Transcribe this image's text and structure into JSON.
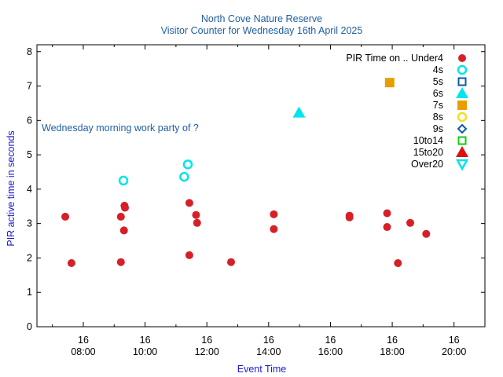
{
  "chart_data": {
    "type": "scatter",
    "title": "North Cove Nature Reserve",
    "subtitle": "Visitor Counter for Wednesday 16th April 2025",
    "xlabel": "Event Time",
    "ylabel": "PIR active time in seconds",
    "annotation": "Wednesday morning work party of ?",
    "legend_title": "PIR Time on .. Under4",
    "legend_placement": "top-right",
    "xlim": [
      "06:30",
      "21:00"
    ],
    "ylim": [
      0,
      8.2
    ],
    "y_ticks": [
      "0",
      "1",
      "2",
      "3",
      "4",
      "5",
      "6",
      "7",
      "8"
    ],
    "x_ticks": [
      {
        "day": "16",
        "time": "08:00"
      },
      {
        "day": "16",
        "time": "10:00"
      },
      {
        "day": "16",
        "time": "12:00"
      },
      {
        "day": "16",
        "time": "14:00"
      },
      {
        "day": "16",
        "time": "16:00"
      },
      {
        "day": "16",
        "time": "18:00"
      },
      {
        "day": "16",
        "time": "20:00"
      }
    ],
    "colors": {
      "title": "#1f5fa0",
      "axis_label": "#1a1ad0",
      "Under4": "#d62028",
      "4s": "#00e5ee",
      "5s": "#0b5aa8",
      "6s": "#00e5ee",
      "7s": "#e69f00",
      "8s": "#f0e020",
      "9s": "#0b5aa8",
      "10to14": "#11cc11",
      "15to20": "#e01010",
      "Over20": "#00e5ee"
    },
    "series": [
      {
        "name": "Under4",
        "marker": "filled-circle",
        "points": [
          {
            "x": "07:25",
            "y": 3.2
          },
          {
            "x": "07:37",
            "y": 1.85
          },
          {
            "x": "09:13",
            "y": 3.2
          },
          {
            "x": "09:13",
            "y": 1.88
          },
          {
            "x": "09:20",
            "y": 3.52
          },
          {
            "x": "09:21",
            "y": 3.46
          },
          {
            "x": "09:19",
            "y": 2.8
          },
          {
            "x": "11:26",
            "y": 3.6
          },
          {
            "x": "11:39",
            "y": 3.25
          },
          {
            "x": "11:41",
            "y": 3.02
          },
          {
            "x": "11:26",
            "y": 2.08
          },
          {
            "x": "12:47",
            "y": 1.88
          },
          {
            "x": "14:10",
            "y": 3.27
          },
          {
            "x": "14:10",
            "y": 2.84
          },
          {
            "x": "16:37",
            "y": 3.23
          },
          {
            "x": "16:37",
            "y": 3.18
          },
          {
            "x": "17:50",
            "y": 3.3
          },
          {
            "x": "17:50",
            "y": 2.9
          },
          {
            "x": "18:11",
            "y": 1.85
          },
          {
            "x": "18:35",
            "y": 3.02
          },
          {
            "x": "19:06",
            "y": 2.7
          }
        ]
      },
      {
        "name": "4s",
        "marker": "open-circle",
        "points": [
          {
            "x": "09:18",
            "y": 4.25
          },
          {
            "x": "11:16",
            "y": 4.36
          },
          {
            "x": "11:23",
            "y": 4.72
          }
        ]
      },
      {
        "name": "5s",
        "marker": "open-square",
        "points": []
      },
      {
        "name": "6s",
        "marker": "filled-triangle",
        "points": [
          {
            "x": "14:59",
            "y": 6.22
          }
        ]
      },
      {
        "name": "7s",
        "marker": "filled-square",
        "points": [
          {
            "x": "17:55",
            "y": 7.1
          }
        ]
      },
      {
        "name": "8s",
        "marker": "open-circle",
        "points": []
      },
      {
        "name": "9s",
        "marker": "open-diamond",
        "points": []
      },
      {
        "name": "10to14",
        "marker": "open-square",
        "points": []
      },
      {
        "name": "15to20",
        "marker": "filled-triangle",
        "points": []
      },
      {
        "name": "Over20",
        "marker": "open-triangle-down",
        "points": []
      }
    ]
  }
}
